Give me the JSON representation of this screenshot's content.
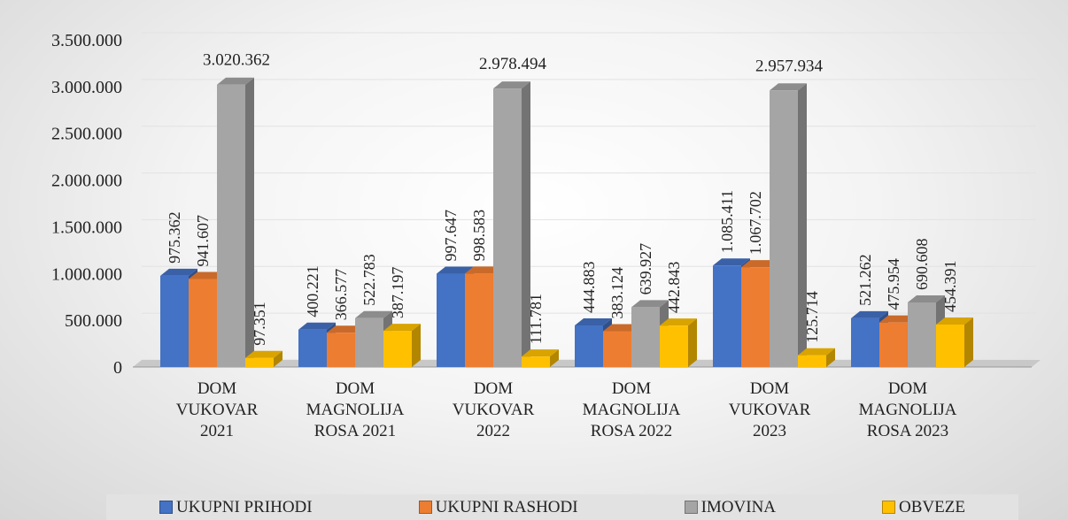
{
  "chart_data": {
    "type": "bar3d",
    "categories": [
      "DOM VUKOVAR 2021",
      "DOM MAGNOLIJA ROSA 2021",
      "DOM VUKOVAR 2022",
      "DOM MAGNOLIJA ROSA 2022",
      "DOM VUKOVAR 2023",
      "DOM MAGNOLIJA ROSA 2023"
    ],
    "series": [
      {
        "name": "UKUPNI PRIHODI",
        "color": "#4472c4",
        "values": [
          975362,
          400221,
          997647,
          444883,
          1085411,
          521262
        ],
        "value_labels": [
          "975.362",
          "400.221",
          "997.647",
          "444.883",
          "1.085.411",
          "521.262"
        ]
      },
      {
        "name": "UKUPNI RASHODI",
        "color": "#ed7d31",
        "values": [
          941607,
          366577,
          998583,
          383124,
          1067702,
          475954
        ],
        "value_labels": [
          "941.607",
          "366.577",
          "998.583",
          "383.124",
          "1.067.702",
          "475.954"
        ]
      },
      {
        "name": "IMOVINA",
        "color": "#a5a5a5",
        "values": [
          3020362,
          522783,
          2978494,
          639927,
          2957934,
          690608
        ],
        "value_labels": [
          "3.020.362",
          "522.783",
          "2.978.494",
          "639.927",
          "2.957.934",
          "690.608"
        ]
      },
      {
        "name": "OBVEZE",
        "color": "#ffc000",
        "values": [
          97351,
          387197,
          111781,
          442843,
          125714,
          454391
        ],
        "value_labels": [
          "97.351",
          "387.197",
          "111.781",
          "442.843",
          "125.714",
          "454.391"
        ]
      }
    ],
    "ylim": [
      0,
      3500000
    ],
    "yticks": [
      0,
      {
        "value": 500000,
        "label": "500.000"
      },
      {
        "value": 1000000,
        "label": "1.000.000"
      },
      {
        "value": 1500000,
        "label": "1.500.000"
      },
      {
        "value": 2000000,
        "label": "2.000.000"
      },
      {
        "value": 2500000,
        "label": "2.500.000"
      },
      {
        "value": 3000000,
        "label": "3.000.000"
      },
      {
        "value": 3500000,
        "label": "3.500.000"
      }
    ],
    "grid": true,
    "legend": "bottom"
  }
}
